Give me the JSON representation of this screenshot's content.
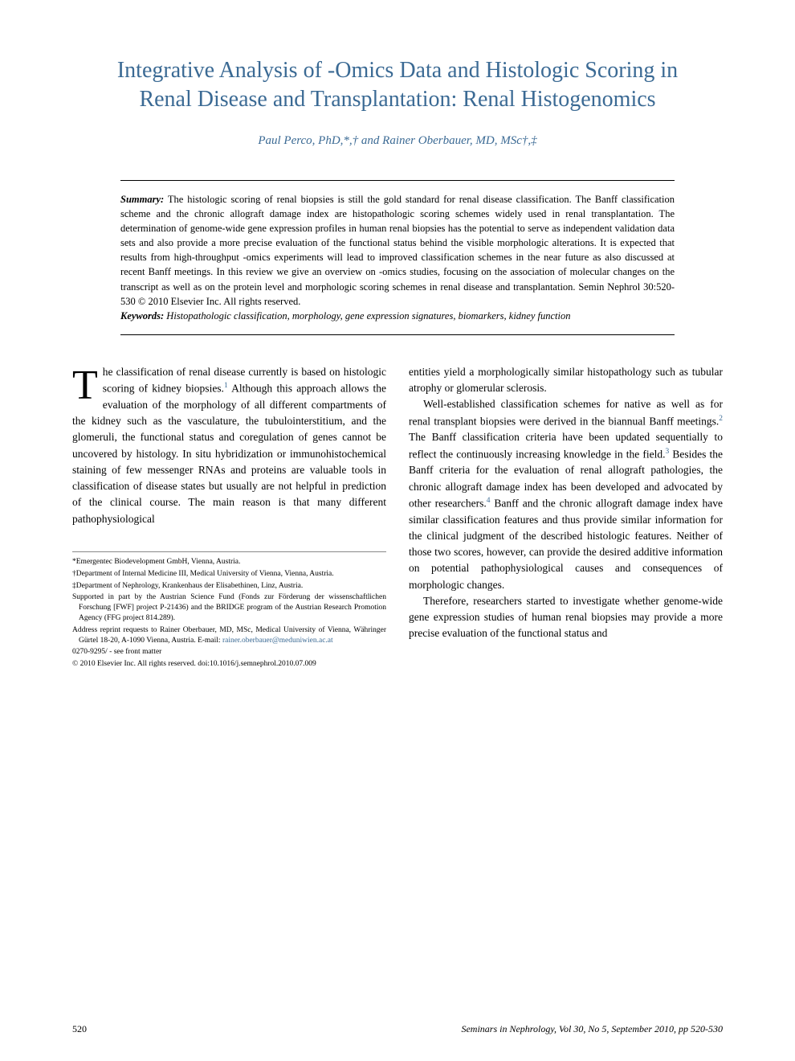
{
  "title": "Integrative Analysis of -Omics Data and Histologic Scoring in Renal Disease and Transplantation: Renal Histogenomics",
  "authors": "Paul Perco, PhD,*,† and Rainer Oberbauer, MD, MSc†,‡",
  "summary": {
    "label": "Summary:",
    "text": " The histologic scoring of renal biopsies is still the gold standard for renal disease classification. The Banff classification scheme and the chronic allograft damage index are histopathologic scoring schemes widely used in renal transplantation. The determination of genome-wide gene expression profiles in human renal biopsies has the potential to serve as independent validation data sets and also provide a more precise evaluation of the functional status behind the visible morphologic alterations. It is expected that results from high-throughput -omics experiments will lead to improved classification schemes in the near future as also discussed at recent Banff meetings. In this review we give an overview on -omics studies, focusing on the association of molecular changes on the transcript as well as on the protein level and morphologic scoring schemes in renal disease and transplantation. Semin Nephrol 30:520-530 © 2010 Elsevier Inc. All rights reserved."
  },
  "keywords": {
    "label": "Keywords:",
    "text": " Histopathologic classification, morphology, gene expression signatures, biomarkers, kidney function"
  },
  "body": {
    "col1_p1_dropcap": "T",
    "col1_p1": "he classification of renal disease currently is based on histologic scoring of kidney biopsies.",
    "col1_p1_rest": " Although this approach allows the evaluation of the morphology of all different compartments of the kidney such as the vasculature, the tubulointerstitium, and the glomeruli, the functional status and coregulation of genes cannot be uncovered by histology. In situ hybridization or immunohistochemical staining of few messenger RNAs and proteins are valuable tools in classification of disease states but usually are not helpful in prediction of the clinical course. The main reason is that many different pathophysiological",
    "col2_p1": "entities yield a morphologically similar histopathology such as tubular atrophy or glomerular sclerosis.",
    "col2_p2a": "Well-established classification schemes for native as well as for renal transplant biopsies were derived in the biannual Banff meetings.",
    "col2_p2b": " The Banff classification criteria have been updated sequentially to reflect the continuously increasing knowledge in the field.",
    "col2_p2c": " Besides the Banff criteria for the evaluation of renal allograft pathologies, the chronic allograft damage index has been developed and advocated by other researchers.",
    "col2_p2d": " Banff and the chronic allograft damage index have similar classification features and thus provide similar information for the clinical judgment of the described histologic features. Neither of those two scores, however, can provide the desired additive information on potential pathophysiological causes and consequences of morphologic changes.",
    "col2_p3": "Therefore, researchers started to investigate whether genome-wide gene expression studies of human renal biopsies may provide a more precise evaluation of the functional status and"
  },
  "footnotes": {
    "f1": "*Emergentec Biodevelopment GmbH, Vienna, Austria.",
    "f2": "†Department of Internal Medicine III, Medical University of Vienna, Vienna, Austria.",
    "f3": "‡Department of Nephrology, Krankenhaus der Elisabethinen, Linz, Austria.",
    "f4": "Supported in part by the Austrian Science Fund (Fonds zur Förderung der wissenschaftlichen Forschung [FWF] project P-21436) and the BRIDGE program of the Austrian Research Promotion Agency (FFG project 814.289).",
    "f5a": "Address reprint requests to Rainer Oberbauer, MD, MSc, Medical University of Vienna, Währinger Gürtel 18-20, A-1090 Vienna, Austria. E-mail: ",
    "f5b": "rainer.oberbauer@meduniwien.ac.at",
    "f6": "0270-9295/ - see front matter",
    "f7": "© 2010 Elsevier Inc. All rights reserved. doi:10.1016/j.semnephrol.2010.07.009"
  },
  "refs": {
    "r1": "1",
    "r2": "2",
    "r3": "3",
    "r4": "4"
  },
  "footer": {
    "page": "520",
    "journal": "Seminars in Nephrology, Vol 30, No 5, September 2010, pp 520-530"
  }
}
